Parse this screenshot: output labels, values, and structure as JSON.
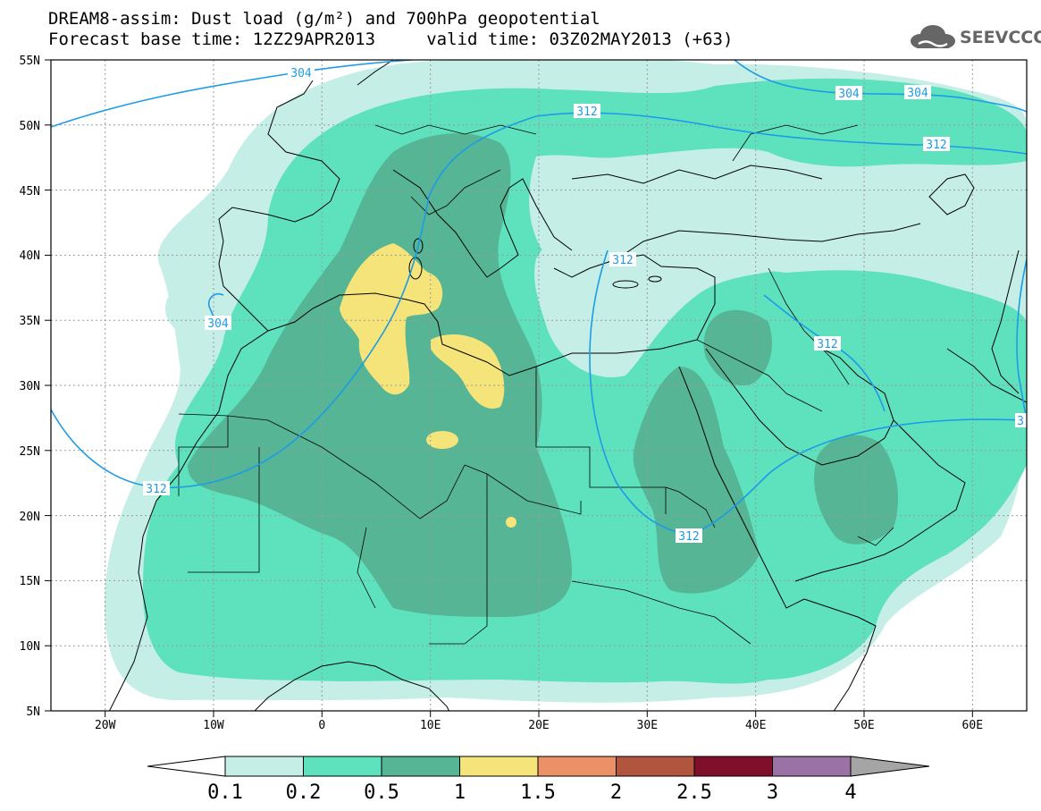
{
  "header": {
    "title_line1": "DREAM8-assim: Dust load (g/m²) and 700hPa geopotential",
    "title_line2": "Forecast base time: 12Z29APR2013     valid time: 03Z02MAY2013 (+63)"
  },
  "logo": {
    "text": "SEEVCCC",
    "icon": "cloud-icon"
  },
  "axes": {
    "lat_labels": [
      "55N",
      "50N",
      "45N",
      "40N",
      "35N",
      "30N",
      "25N",
      "20N",
      "15N",
      "10N",
      "5N"
    ],
    "lon_labels": [
      "20W",
      "10W",
      "0",
      "10E",
      "20E",
      "30E",
      "40E",
      "50E",
      "60E"
    ]
  },
  "contour_labels": [
    "304",
    "304",
    "304",
    "304",
    "312",
    "312",
    "312",
    "312",
    "312",
    "312",
    "3"
  ],
  "legend": {
    "ticks": [
      "0.1",
      "0.2",
      "0.5",
      "1",
      "1.5",
      "2",
      "2.5",
      "3",
      "4"
    ],
    "colors": [
      "#ffffff",
      "#c4eee6",
      "#5ee2be",
      "#56b594",
      "#f5e479",
      "#eb9067",
      "#b2553f",
      "#7f0f2b",
      "#9b72a6",
      "#a5a5a5"
    ]
  },
  "map_colors": {
    "c01": "#c4eee6",
    "c02": "#5ee2be",
    "c05": "#56b594",
    "c10": "#f5e479",
    "contour": "#1e9be6"
  }
}
